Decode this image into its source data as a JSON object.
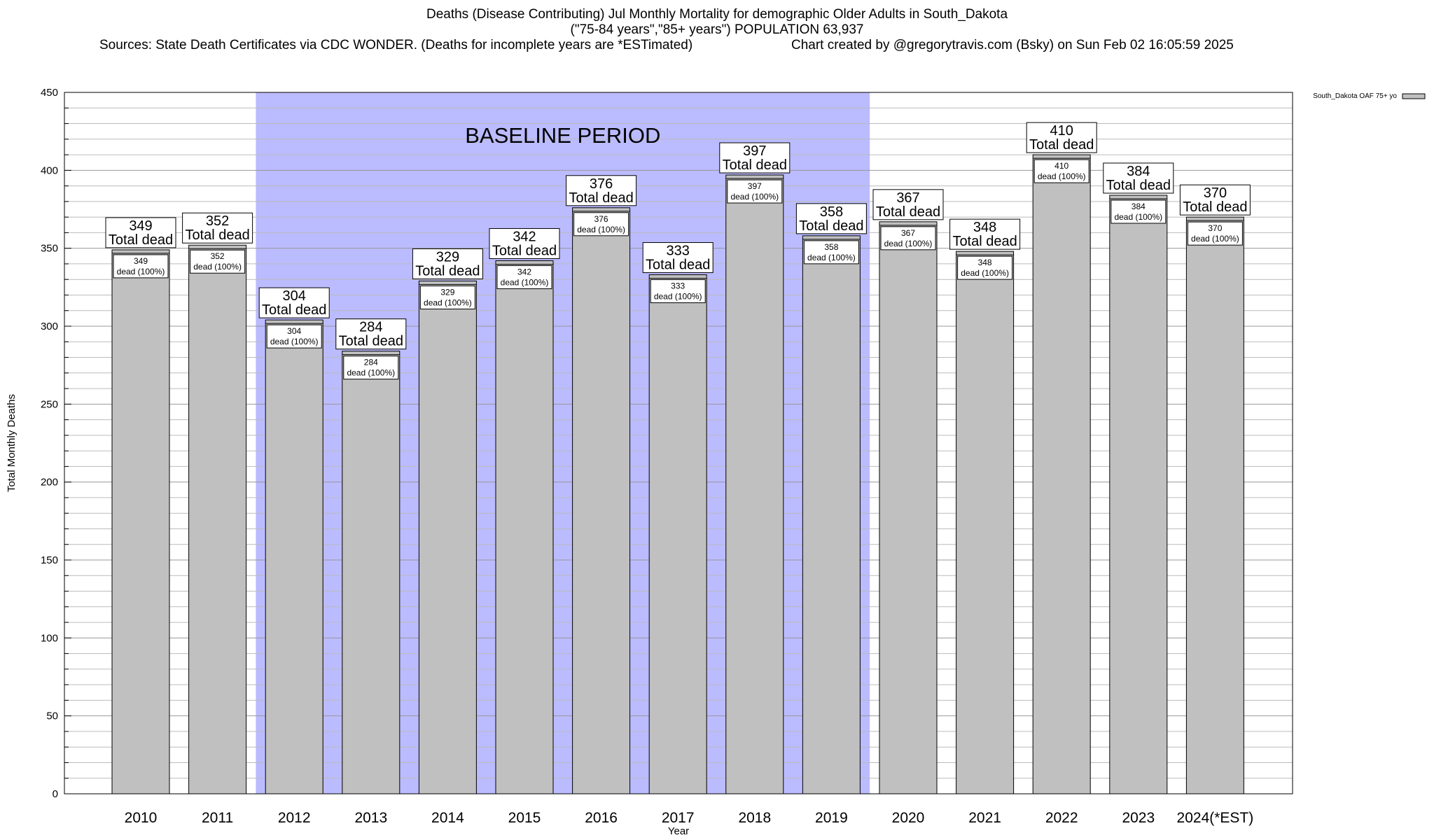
{
  "header": {
    "title_line1": "Deaths (Disease Contributing) Jul Monthly Mortality for demographic Older Adults in South_Dakota",
    "title_line2": "(\"75-84 years\",\"85+ years\") POPULATION 63,937",
    "sources": "Sources: State Death Certificates via CDC WONDER. (Deaths for incomplete years are *ESTimated)",
    "credit": "Chart created by @gregorytravis.com (Bsky) on Sun Feb 02 16:05:59 2025"
  },
  "chart_data": {
    "type": "bar",
    "categories": [
      "2010",
      "2011",
      "2012",
      "2013",
      "2014",
      "2015",
      "2016",
      "2017",
      "2018",
      "2019",
      "2020",
      "2021",
      "2022",
      "2023",
      "2024(*EST)"
    ],
    "series": [
      {
        "name": "South_Dakota OAF 75+ yo",
        "values": [
          349,
          352,
          304,
          284,
          329,
          342,
          376,
          333,
          397,
          358,
          367,
          348,
          410,
          384,
          370
        ]
      }
    ],
    "total_label": "Total dead",
    "inner_labels": [
      "dead (100%)",
      "dead (100%)",
      "dead (100%)",
      "dead (100%)",
      "dead (100%)",
      "dead (100%)",
      "dead (100%)",
      "dead (100%)",
      "dead (100%)",
      "dead (100%)",
      "dead (100%)",
      "dead (100%)",
      "dead (100%)",
      "dead (100%)",
      "dead (100%)"
    ],
    "xlabel": "Year",
    "ylabel": "Total Monthly Deaths",
    "ylim": [
      0,
      450
    ],
    "yticks": [
      0,
      50,
      100,
      150,
      200,
      250,
      300,
      350,
      400,
      450
    ],
    "minor_tick_step": 10,
    "grid": true,
    "legend_position": "top-right, outside plot",
    "baseline": {
      "label": "BASELINE PERIOD",
      "start_category": "2012",
      "end_category": "2019",
      "color": "#bbbbff"
    },
    "bar_color": "#c0c0c0"
  }
}
